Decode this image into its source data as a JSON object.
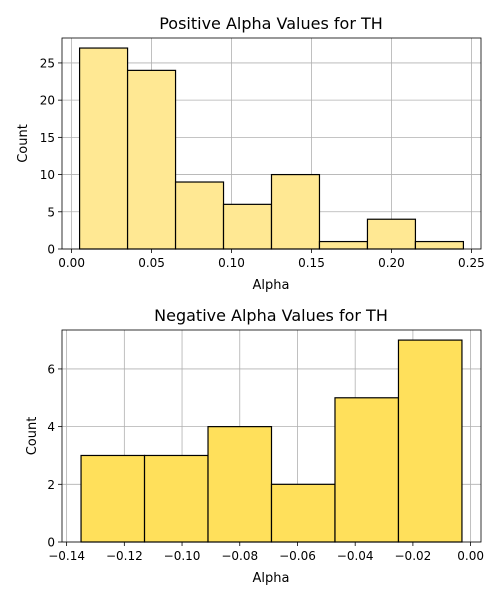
{
  "chart_data": [
    {
      "type": "bar",
      "title": "Positive Alpha Values for TH",
      "xlabel": "Alpha",
      "ylabel": "Count",
      "bin_edges": [
        0.005,
        0.035,
        0.065,
        0.095,
        0.125,
        0.155,
        0.185,
        0.215,
        0.245
      ],
      "values": [
        27,
        24,
        9,
        6,
        10,
        1,
        4,
        1
      ],
      "xlim": [
        -0.006,
        0.256
      ],
      "ylim": [
        0,
        28.35
      ],
      "xticks": [
        0.0,
        0.05,
        0.1,
        0.15,
        0.2,
        0.25
      ],
      "xtick_labels": [
        "0.00",
        "0.05",
        "0.10",
        "0.15",
        "0.20",
        "0.25"
      ],
      "yticks": [
        0,
        5,
        10,
        15,
        20,
        25
      ],
      "ytick_labels": [
        "0",
        "5",
        "10",
        "15",
        "20",
        "25"
      ],
      "grid": true,
      "bar_color": "#ffe893"
    },
    {
      "type": "bar",
      "title": "Negative Alpha Values for TH",
      "xlabel": "Alpha",
      "ylabel": "Count",
      "bin_edges": [
        -0.135,
        -0.113,
        -0.091,
        -0.069,
        -0.047,
        -0.025,
        -0.003
      ],
      "values": [
        3,
        3,
        4,
        2,
        5,
        7
      ],
      "xlim": [
        -0.1416,
        0.0036
      ],
      "ylim": [
        0,
        7.35
      ],
      "xticks": [
        -0.14,
        -0.12,
        -0.1,
        -0.08,
        -0.06,
        -0.04,
        -0.02,
        0.0
      ],
      "xtick_labels": [
        "−0.14",
        "−0.12",
        "−0.10",
        "−0.08",
        "−0.06",
        "−0.04",
        "−0.02",
        "0.00"
      ],
      "yticks": [
        0,
        2,
        4,
        6
      ],
      "ytick_labels": [
        "0",
        "2",
        "4",
        "6"
      ],
      "grid": true,
      "bar_color": "#ffe05b"
    }
  ]
}
